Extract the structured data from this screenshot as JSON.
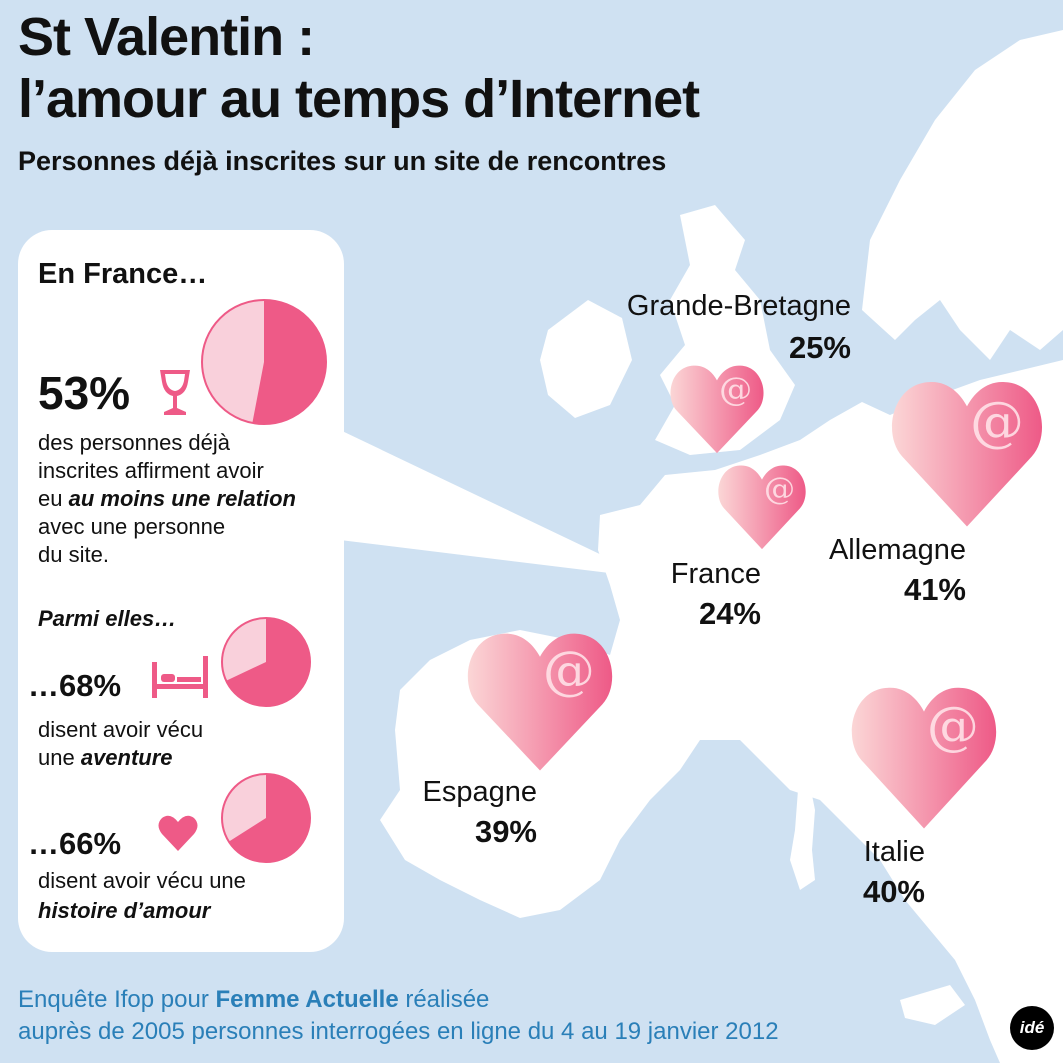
{
  "title_line1": "St Valentin :",
  "title_line2": "l’amour au temps d’Internet",
  "subtitle": "Personnes déjà inscrites sur un site de rencontres",
  "france_panel": {
    "heading": "En France…",
    "main_pct": "53%",
    "main_text_1": "des personnes déjà",
    "main_text_2": "inscrites affirment avoir",
    "main_text_3a": "eu ",
    "main_text_3b": "au moins une relation",
    "main_text_4": "avec une personne",
    "main_text_5": "du site.",
    "among": "Parmi elles…",
    "stat2_pct": "…68%",
    "stat2_text_1": "disent avoir vécu",
    "stat2_text_2a": "une ",
    "stat2_text_2b": "aventure",
    "stat3_pct": "…66%",
    "stat3_text_1": "disent avoir vécu une",
    "stat3_text_2": "histoire d’amour"
  },
  "chart_data": [
    {
      "type": "pie",
      "title": "En France…",
      "slices": [
        {
          "label": "53%",
          "value": 53,
          "color": "#ee5a87"
        },
        {
          "label": "",
          "value": 47,
          "color": "#f9d0db"
        }
      ]
    },
    {
      "type": "pie",
      "slices": [
        {
          "label": "…68%",
          "value": 68,
          "color": "#ee5a87"
        },
        {
          "label": "",
          "value": 32,
          "color": "#f9d0db"
        }
      ]
    },
    {
      "type": "pie",
      "slices": [
        {
          "label": "…66%",
          "value": 66,
          "color": "#ee5a87"
        },
        {
          "label": "",
          "value": 34,
          "color": "#f9d0db"
        }
      ]
    },
    {
      "type": "bar",
      "encoding": "heart size on map",
      "categories": [
        "Grande-Bretagne",
        "France",
        "Allemagne",
        "Espagne",
        "Italie"
      ],
      "values": [
        25,
        24,
        41,
        39,
        40
      ],
      "unit": "%"
    }
  ],
  "countries": [
    {
      "name": "Grande-Bretagne",
      "pct": "25%",
      "value": 25
    },
    {
      "name": "France",
      "pct": "24%",
      "value": 24
    },
    {
      "name": "Allemagne",
      "pct": "41%",
      "value": 41
    },
    {
      "name": "Espagne",
      "pct": "39%",
      "value": 39
    },
    {
      "name": "Italie",
      "pct": "40%",
      "value": 40
    }
  ],
  "heart_symbol": "@",
  "source_1a": "Enquête Ifop pour ",
  "source_1b": "Femme Actuelle",
  "source_1c": " réalisée",
  "source_2": "auprès de 2005 personnes interrogées en ligne du 4 au 19 janvier 2012",
  "logo": "idé",
  "colors": {
    "sea": "#cfe1f2",
    "land": "#ffffff",
    "pink": "#ee5a87",
    "pink_light": "#f9d0db",
    "source_text": "#2a7fb8"
  },
  "icons": [
    "wine-glass-icon",
    "bed-icon",
    "heart-icon",
    "at-sign-icon"
  ]
}
